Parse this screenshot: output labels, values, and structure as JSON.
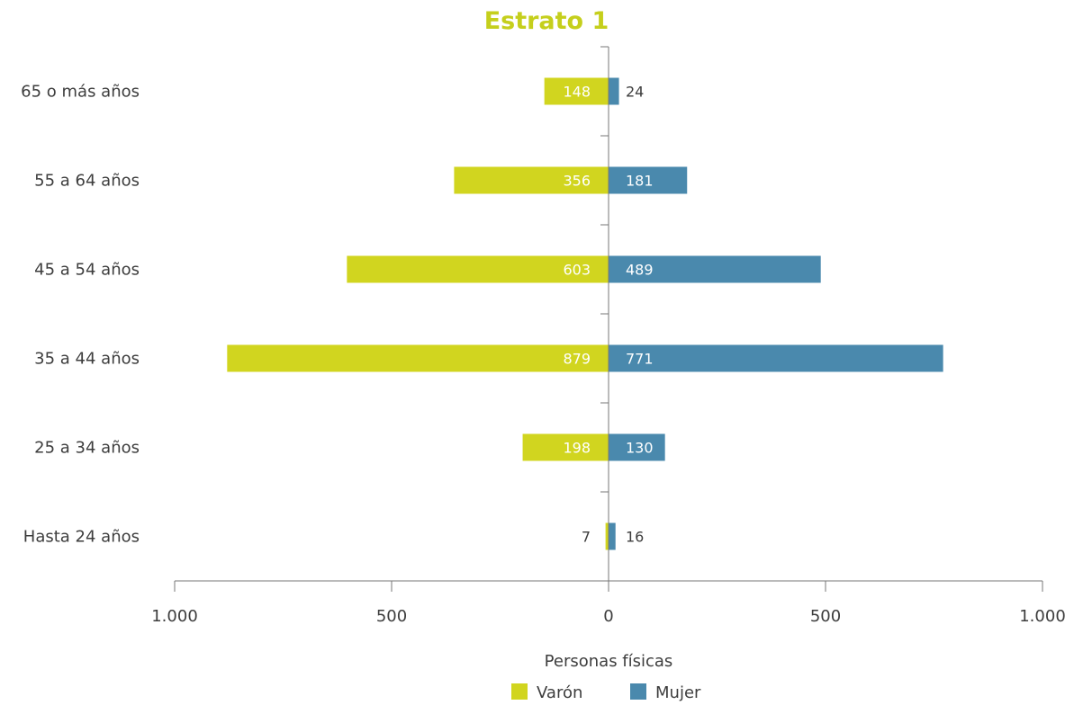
{
  "chart_data": {
    "type": "bar",
    "orientation": "horizontal-population-pyramid",
    "title": "Estrato 1",
    "xlabel": "Personas físicas",
    "categories": [
      "65 o más años",
      "55 a 64 años",
      "45 a 54 años",
      "35 a 44 años",
      "25 a 34 años",
      "Hasta 24 años"
    ],
    "series": [
      {
        "name": "Varón",
        "values": [
          148,
          356,
          603,
          879,
          198,
          7
        ],
        "color": "#d1d51f",
        "side": "left"
      },
      {
        "name": "Mujer",
        "values": [
          24,
          181,
          489,
          771,
          130,
          16
        ],
        "color": "#4a89ad",
        "side": "right"
      }
    ],
    "xlim": [
      -1000,
      1000
    ],
    "xticks": [
      {
        "value": -1000,
        "label": "1.000"
      },
      {
        "value": -500,
        "label": "500"
      },
      {
        "value": 0,
        "label": "0"
      },
      {
        "value": 500,
        "label": "500"
      },
      {
        "value": 1000,
        "label": "1.000"
      }
    ],
    "title_color": "#c5cf1c",
    "grid": false,
    "legend_position": "bottom-center"
  }
}
